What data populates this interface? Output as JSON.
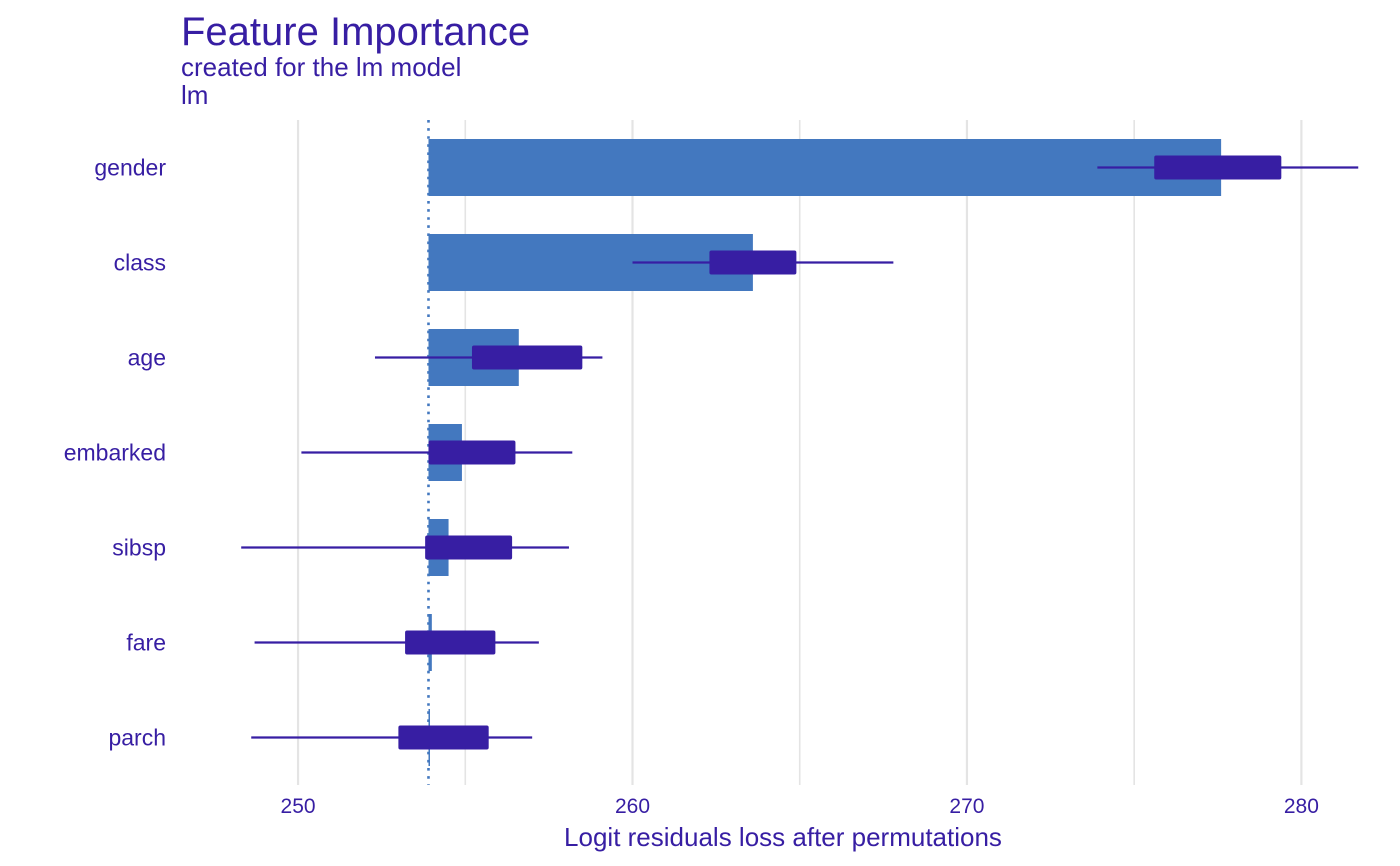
{
  "title": "Feature Importance",
  "subtitle": "created for the lm model",
  "panel_label": "lm",
  "colors": {
    "bar": "#4378bf",
    "box": "#371ea3",
    "text": "#371ea3",
    "grid": "#e4e4e4",
    "baseline": "#4378bf"
  },
  "chart_data": {
    "type": "bar",
    "orientation": "horizontal",
    "xlabel": "Logit residuals loss after permutations",
    "xlim": [
      246.5,
      282.5
    ],
    "xticks": [
      250,
      260,
      270,
      280
    ],
    "grid": true,
    "baseline": 253.9,
    "categories": [
      "gender",
      "class",
      "age",
      "embarked",
      "sibsp",
      "fare",
      "parch"
    ],
    "values": [
      277.6,
      263.6,
      256.6,
      254.9,
      254.5,
      254.0,
      253.9
    ],
    "boxplots": [
      {
        "min": 273.9,
        "q1": 275.6,
        "q3": 279.4,
        "max": 281.7
      },
      {
        "min": 260.0,
        "q1": 262.3,
        "q3": 264.9,
        "max": 267.8
      },
      {
        "min": 252.3,
        "q1": 255.2,
        "q3": 258.5,
        "max": 259.1
      },
      {
        "min": 250.1,
        "q1": 253.9,
        "q3": 256.5,
        "max": 258.2
      },
      {
        "min": 248.3,
        "q1": 253.8,
        "q3": 256.4,
        "max": 258.1
      },
      {
        "min": 248.7,
        "q1": 253.2,
        "q3": 255.9,
        "max": 257.2
      },
      {
        "min": 248.6,
        "q1": 253.0,
        "q3": 255.7,
        "max": 257.0
      }
    ]
  }
}
